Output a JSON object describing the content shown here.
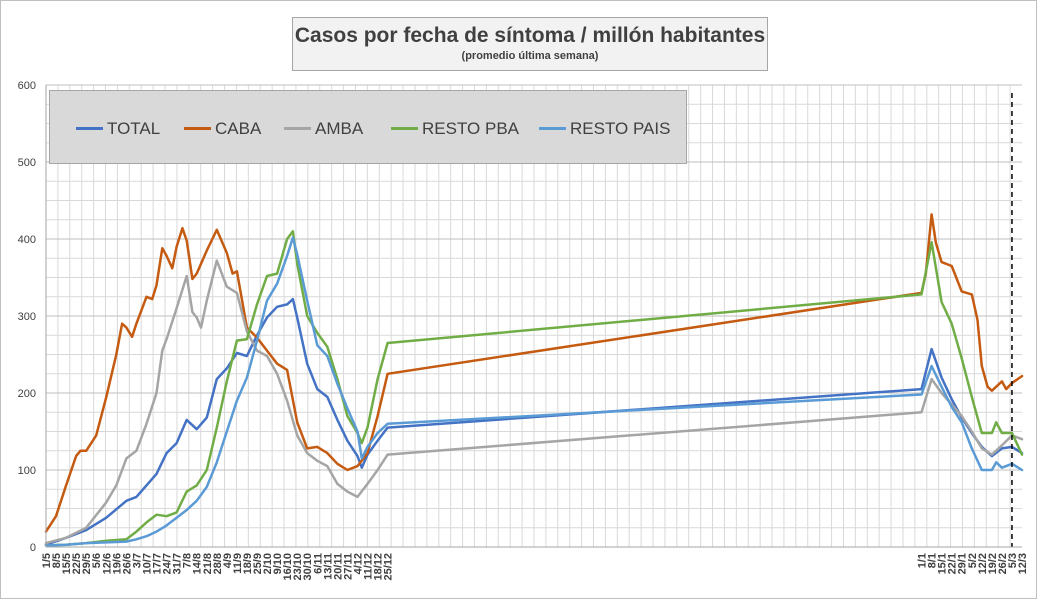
{
  "chart_data": {
    "type": "line",
    "title": "Casos por fecha de síntoma / millón habitantes",
    "subtitle": "(promedio última semana)",
    "xlabel": "",
    "ylabel": "",
    "ylim": [
      0,
      600
    ],
    "yticks": [
      "0",
      "100",
      "200",
      "300",
      "400",
      "500",
      "600"
    ],
    "grid": true,
    "legend_position": "top-left",
    "x_start": "1/5",
    "x_end": "12/3",
    "x_tick_labels": [
      "1/5",
      "8/5",
      "15/5",
      "22/5",
      "29/5",
      "5/6",
      "12/6",
      "19/6",
      "26/6",
      "3/7",
      "10/7",
      "17/7",
      "24/7",
      "31/7",
      "7/8",
      "14/8",
      "21/8",
      "28/8",
      "4/9",
      "11/9",
      "18/9",
      "25/9",
      "2/10",
      "9/10",
      "16/10",
      "23/10",
      "30/10",
      "6/11",
      "13/11",
      "20/11",
      "27/11",
      "4/12",
      "11/12",
      "18/12",
      "25/12",
      "1/1",
      "8/1",
      "15/1",
      "22/1",
      "29/1",
      "5/2",
      "12/2",
      "19/2",
      "26/2",
      "5/3",
      "12/3"
    ],
    "vertical_marker": "5/3",
    "series": [
      {
        "name": "TOTAL",
        "color": "#4472c4",
        "points": [
          [
            "1/5",
            3
          ],
          [
            "15/5",
            12
          ],
          [
            "29/5",
            22
          ],
          [
            "12/6",
            38
          ],
          [
            "26/6",
            60
          ],
          [
            "3/7",
            65
          ],
          [
            "17/7",
            95
          ],
          [
            "24/7",
            122
          ],
          [
            "31/7",
            135
          ],
          [
            "7/8",
            165
          ],
          [
            "14/8",
            153
          ],
          [
            "21/8",
            168
          ],
          [
            "28/8",
            218
          ],
          [
            "4/9",
            232
          ],
          [
            "11/9",
            252
          ],
          [
            "18/9",
            248
          ],
          [
            "25/9",
            275
          ],
          [
            "2/10",
            298
          ],
          [
            "9/10",
            312
          ],
          [
            "16/10",
            315
          ],
          [
            "20/10",
            322
          ],
          [
            "23/10",
            298
          ],
          [
            "30/10",
            238
          ],
          [
            "6/11",
            205
          ],
          [
            "13/11",
            195
          ],
          [
            "20/11",
            165
          ],
          [
            "27/11",
            138
          ],
          [
            "4/12",
            118
          ],
          [
            "7/12",
            103
          ],
          [
            "11/12",
            120
          ],
          [
            "18/12",
            138
          ],
          [
            "25/12",
            155
          ],
          [
            "1/1",
            205
          ],
          [
            "8/1",
            257
          ],
          [
            "15/1",
            220
          ],
          [
            "22/1",
            192
          ],
          [
            "29/1",
            168
          ],
          [
            "5/2",
            148
          ],
          [
            "12/2",
            130
          ],
          [
            "19/2",
            118
          ],
          [
            "26/2",
            128
          ],
          [
            "5/3",
            130
          ],
          [
            "12/3",
            122
          ]
        ]
      },
      {
        "name": "CABA",
        "color": "#c55a11",
        "points": [
          [
            "1/5",
            20
          ],
          [
            "8/5",
            40
          ],
          [
            "15/5",
            80
          ],
          [
            "22/5",
            118
          ],
          [
            "25/5",
            125
          ],
          [
            "29/5",
            125
          ],
          [
            "5/6",
            145
          ],
          [
            "12/6",
            195
          ],
          [
            "19/6",
            250
          ],
          [
            "23/6",
            290
          ],
          [
            "26/6",
            285
          ],
          [
            "30/6",
            273
          ],
          [
            "3/7",
            290
          ],
          [
            "10/7",
            325
          ],
          [
            "14/7",
            322
          ],
          [
            "17/7",
            340
          ],
          [
            "21/7",
            388
          ],
          [
            "24/7",
            378
          ],
          [
            "28/7",
            362
          ],
          [
            "31/7",
            390
          ],
          [
            "4/8",
            414
          ],
          [
            "7/8",
            398
          ],
          [
            "11/8",
            348
          ],
          [
            "14/8",
            355
          ],
          [
            "21/8",
            385
          ],
          [
            "28/8",
            412
          ],
          [
            "4/9",
            382
          ],
          [
            "8/9",
            355
          ],
          [
            "11/9",
            358
          ],
          [
            "18/9",
            285
          ],
          [
            "25/9",
            272
          ],
          [
            "2/10",
            255
          ],
          [
            "9/10",
            238
          ],
          [
            "16/10",
            230
          ],
          [
            "23/10",
            162
          ],
          [
            "30/10",
            128
          ],
          [
            "6/11",
            130
          ],
          [
            "13/11",
            122
          ],
          [
            "20/11",
            108
          ],
          [
            "27/11",
            100
          ],
          [
            "4/12",
            105
          ],
          [
            "11/12",
            122
          ],
          [
            "18/12",
            170
          ],
          [
            "25/12",
            225
          ],
          [
            "1/1",
            330
          ],
          [
            "4/1",
            355
          ],
          [
            "8/1",
            432
          ],
          [
            "11/1",
            395
          ],
          [
            "15/1",
            370
          ],
          [
            "22/1",
            365
          ],
          [
            "29/1",
            332
          ],
          [
            "5/2",
            328
          ],
          [
            "9/2",
            295
          ],
          [
            "12/2",
            235
          ],
          [
            "16/2",
            208
          ],
          [
            "19/2",
            203
          ],
          [
            "26/2",
            215
          ],
          [
            "1/3",
            205
          ],
          [
            "5/3",
            213
          ],
          [
            "12/3",
            222
          ]
        ]
      },
      {
        "name": "AMBA",
        "color": "#a5a5a5",
        "points": [
          [
            "1/5",
            5
          ],
          [
            "15/5",
            12
          ],
          [
            "29/5",
            25
          ],
          [
            "12/6",
            58
          ],
          [
            "19/6",
            80
          ],
          [
            "26/6",
            115
          ],
          [
            "3/7",
            125
          ],
          [
            "10/7",
            160
          ],
          [
            "17/7",
            200
          ],
          [
            "21/7",
            255
          ],
          [
            "24/7",
            270
          ],
          [
            "31/7",
            310
          ],
          [
            "7/8",
            352
          ],
          [
            "11/8",
            305
          ],
          [
            "14/8",
            298
          ],
          [
            "17/8",
            285
          ],
          [
            "21/8",
            320
          ],
          [
            "28/8",
            372
          ],
          [
            "4/9",
            338
          ],
          [
            "11/9",
            330
          ],
          [
            "18/9",
            280
          ],
          [
            "25/9",
            255
          ],
          [
            "2/10",
            248
          ],
          [
            "9/10",
            225
          ],
          [
            "16/10",
            190
          ],
          [
            "23/10",
            145
          ],
          [
            "30/10",
            122
          ],
          [
            "6/11",
            112
          ],
          [
            "13/11",
            105
          ],
          [
            "20/11",
            82
          ],
          [
            "27/11",
            72
          ],
          [
            "4/12",
            65
          ],
          [
            "11/12",
            82
          ],
          [
            "18/12",
            100
          ],
          [
            "25/12",
            120
          ],
          [
            "1/1",
            175
          ],
          [
            "8/1",
            218
          ],
          [
            "15/1",
            200
          ],
          [
            "22/1",
            185
          ],
          [
            "29/1",
            170
          ],
          [
            "5/2",
            150
          ],
          [
            "12/2",
            128
          ],
          [
            "19/2",
            120
          ],
          [
            "26/2",
            132
          ],
          [
            "5/3",
            145
          ],
          [
            "12/3",
            140
          ]
        ]
      },
      {
        "name": "RESTO PBA",
        "color": "#70ad47",
        "points": [
          [
            "1/5",
            2
          ],
          [
            "15/5",
            3
          ],
          [
            "29/5",
            5
          ],
          [
            "12/6",
            8
          ],
          [
            "26/6",
            10
          ],
          [
            "3/7",
            20
          ],
          [
            "10/7",
            32
          ],
          [
            "17/7",
            42
          ],
          [
            "24/7",
            40
          ],
          [
            "31/7",
            45
          ],
          [
            "7/8",
            72
          ],
          [
            "14/8",
            80
          ],
          [
            "21/8",
            100
          ],
          [
            "28/8",
            155
          ],
          [
            "4/9",
            215
          ],
          [
            "11/9",
            268
          ],
          [
            "18/9",
            270
          ],
          [
            "25/9",
            315
          ],
          [
            "2/10",
            352
          ],
          [
            "9/10",
            355
          ],
          [
            "16/10",
            400
          ],
          [
            "20/10",
            410
          ],
          [
            "23/10",
            368
          ],
          [
            "30/10",
            300
          ],
          [
            "6/11",
            278
          ],
          [
            "13/11",
            260
          ],
          [
            "20/11",
            218
          ],
          [
            "27/11",
            170
          ],
          [
            "4/12",
            148
          ],
          [
            "7/12",
            135
          ],
          [
            "11/12",
            155
          ],
          [
            "18/12",
            218
          ],
          [
            "25/12",
            265
          ],
          [
            "1/1",
            328
          ],
          [
            "8/1",
            396
          ],
          [
            "15/1",
            318
          ],
          [
            "22/1",
            290
          ],
          [
            "29/1",
            245
          ],
          [
            "5/2",
            195
          ],
          [
            "12/2",
            148
          ],
          [
            "19/2",
            148
          ],
          [
            "22/2",
            162
          ],
          [
            "26/2",
            148
          ],
          [
            "5/3",
            148
          ],
          [
            "12/3",
            120
          ]
        ]
      },
      {
        "name": "RESTO PAIS",
        "color": "#5b9bd5",
        "points": [
          [
            "1/5",
            2
          ],
          [
            "15/5",
            3
          ],
          [
            "29/5",
            5
          ],
          [
            "12/6",
            6
          ],
          [
            "26/6",
            7
          ],
          [
            "3/7",
            10
          ],
          [
            "10/7",
            14
          ],
          [
            "17/7",
            20
          ],
          [
            "24/7",
            28
          ],
          [
            "31/7",
            38
          ],
          [
            "7/8",
            48
          ],
          [
            "14/8",
            60
          ],
          [
            "21/8",
            78
          ],
          [
            "28/8",
            110
          ],
          [
            "4/9",
            150
          ],
          [
            "11/9",
            190
          ],
          [
            "18/9",
            220
          ],
          [
            "25/9",
            268
          ],
          [
            "2/10",
            320
          ],
          [
            "9/10",
            342
          ],
          [
            "16/10",
            378
          ],
          [
            "20/10",
            402
          ],
          [
            "23/10",
            380
          ],
          [
            "30/10",
            320
          ],
          [
            "6/11",
            262
          ],
          [
            "13/11",
            248
          ],
          [
            "20/11",
            212
          ],
          [
            "27/11",
            180
          ],
          [
            "4/12",
            150
          ],
          [
            "7/12",
            115
          ],
          [
            "11/12",
            130
          ],
          [
            "18/12",
            148
          ],
          [
            "25/12",
            160
          ],
          [
            "1/1",
            198
          ],
          [
            "8/1",
            235
          ],
          [
            "15/1",
            208
          ],
          [
            "22/1",
            182
          ],
          [
            "29/1",
            162
          ],
          [
            "5/2",
            128
          ],
          [
            "12/2",
            100
          ],
          [
            "19/2",
            100
          ],
          [
            "22/2",
            110
          ],
          [
            "26/2",
            103
          ],
          [
            "5/3",
            108
          ],
          [
            "12/3",
            100
          ]
        ]
      }
    ]
  }
}
